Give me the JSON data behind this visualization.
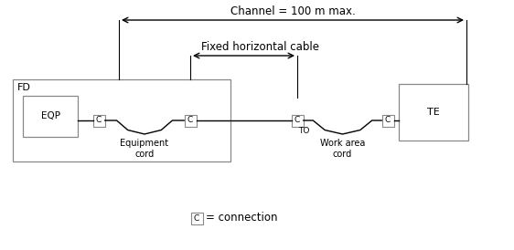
{
  "bg_color": "#ffffff",
  "line_color": "#000000",
  "box_color": "#888888",
  "title": "Channel = 100 m max.",
  "subtitle": "Fixed horizontal cable",
  "label_eq_cord": "Equipment\ncord",
  "label_wa_cord": "Work area\ncord",
  "label_fd": "FD",
  "label_eqp": "EQP",
  "label_te": "TE",
  "label_to": "TO",
  "label_legend": "= connection",
  "label_c": "C",
  "figw": 5.62,
  "figh": 2.74,
  "dpi": 100
}
